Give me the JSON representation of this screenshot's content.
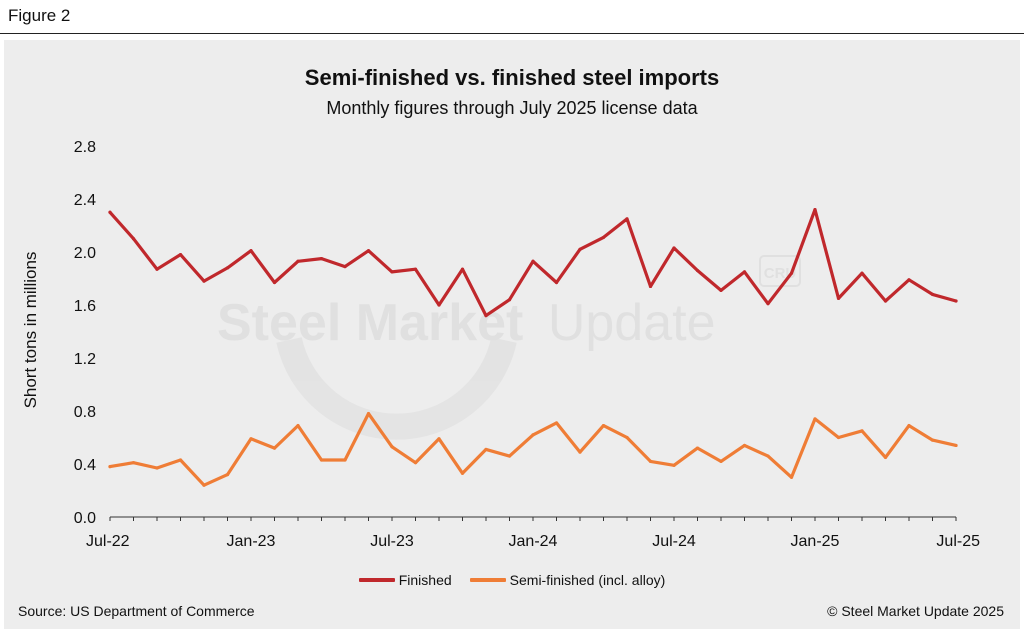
{
  "figure_label": "Figure 2",
  "footer": {
    "source": "Source: US Department of Commerce",
    "copyright": "© Steel Market Update 2025"
  },
  "watermark": {
    "brand_bold": "Steel Market",
    "brand_light": "Update",
    "badge": "CRU"
  },
  "colors": {
    "finished": "#c0282c",
    "semi_finished": "#ef7d36",
    "panel_bg": "#ededed"
  },
  "chart_data": {
    "type": "line",
    "title": "Semi-finished vs. finished steel imports",
    "subtitle": "Monthly figures through July 2025 license data",
    "xlabel": "",
    "ylabel": "Short tons in millions",
    "ylim": [
      0,
      2.8
    ],
    "yticks": [
      "0.0",
      "0.4",
      "0.8",
      "1.2",
      "1.6",
      "2.0",
      "2.4",
      "2.8"
    ],
    "xtick_labels": [
      "Jul-22",
      "Jan-23",
      "Jul-23",
      "Jan-24",
      "Jul-24",
      "Jan-25",
      "Jul-25"
    ],
    "grid": false,
    "legend_position": "bottom",
    "x": [
      "Jul-22",
      "Aug-22",
      "Sep-22",
      "Oct-22",
      "Nov-22",
      "Dec-22",
      "Jan-23",
      "Feb-23",
      "Mar-23",
      "Apr-23",
      "May-23",
      "Jun-23",
      "Jul-23",
      "Aug-23",
      "Sep-23",
      "Oct-23",
      "Nov-23",
      "Dec-23",
      "Jan-24",
      "Feb-24",
      "Mar-24",
      "Apr-24",
      "May-24",
      "Jun-24",
      "Jul-24",
      "Aug-24",
      "Sep-24",
      "Oct-24",
      "Nov-24",
      "Dec-24",
      "Jan-25",
      "Feb-25",
      "Mar-25",
      "Apr-25",
      "May-25",
      "Jun-25",
      "Jul-25"
    ],
    "series": [
      {
        "name": "Finished",
        "values": [
          2.3,
          2.1,
          1.87,
          1.98,
          1.78,
          1.88,
          2.01,
          1.77,
          1.93,
          1.95,
          1.89,
          2.01,
          1.85,
          1.87,
          1.6,
          1.87,
          1.52,
          1.64,
          1.93,
          1.77,
          2.02,
          2.11,
          2.25,
          1.74,
          2.03,
          1.86,
          1.71,
          1.85,
          1.61,
          1.84,
          2.32,
          1.65,
          1.84,
          1.63,
          1.79,
          1.68,
          1.63
        ]
      },
      {
        "name": "Semi-finished (incl. alloy)",
        "values": [
          0.38,
          0.41,
          0.37,
          0.43,
          0.24,
          0.32,
          0.59,
          0.52,
          0.69,
          0.43,
          0.43,
          0.78,
          0.53,
          0.41,
          0.59,
          0.33,
          0.51,
          0.46,
          0.62,
          0.71,
          0.49,
          0.69,
          0.6,
          0.42,
          0.39,
          0.52,
          0.42,
          0.54,
          0.46,
          0.3,
          0.74,
          0.6,
          0.65,
          0.45,
          0.69,
          0.58,
          0.54
        ]
      }
    ]
  }
}
